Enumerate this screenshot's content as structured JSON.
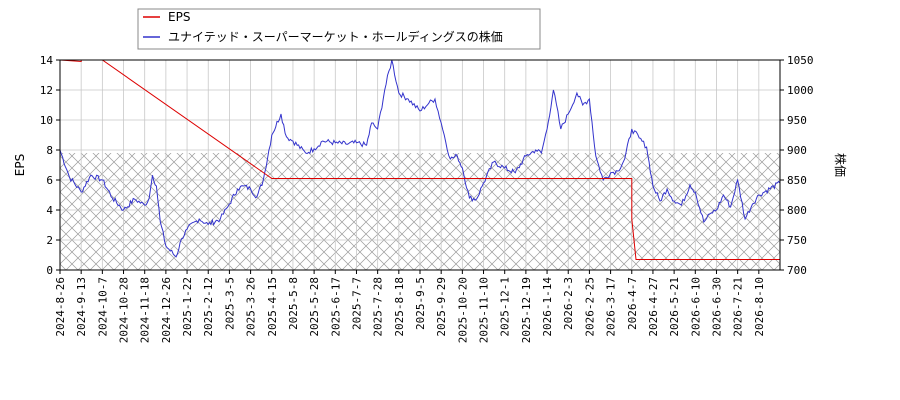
{
  "chart_data": {
    "type": "line",
    "title": "",
    "legend_position": "top-left",
    "grid": true,
    "x_tick_labels": [
      "2024-8-26",
      "2024-9-13",
      "2024-10-7",
      "2024-10-28",
      "2024-11-18",
      "2024-12-26",
      "2025-1-22",
      "2025-2-12",
      "2025-3-5",
      "2025-3-26",
      "2025-4-15",
      "2025-5-8",
      "2025-5-28",
      "2025-6-17",
      "2025-7-7",
      "2025-7-28",
      "2025-8-18",
      "2025-9-5",
      "2025-9-29",
      "2025-10-20",
      "2025-11-10",
      "2025-12-1",
      "2025-12-19",
      "2026-1-14",
      "2026-2-3",
      "2026-2-25",
      "2026-3-17",
      "2026-4-7",
      "2026-4-27",
      "2026-5-21",
      "2026-6-10",
      "2026-6-30",
      "2026-7-21",
      "2026-8-10"
    ],
    "y_left": {
      "label": "EPS",
      "range": [
        0,
        14
      ],
      "ticks": [
        0,
        2,
        4,
        6,
        8,
        10,
        12,
        14
      ]
    },
    "y_right": {
      "label": "株価",
      "range": [
        700,
        1050
      ],
      "ticks": [
        700,
        750,
        800,
        850,
        900,
        950,
        1000,
        1050
      ]
    },
    "hatched_band": {
      "axis": "left",
      "from": 0,
      "to": 7.8
    },
    "series": [
      {
        "name": "EPS",
        "axis": "left",
        "color": "#dd0000",
        "points": [
          [
            "2024-8-26",
            14.0
          ],
          [
            "2024-9-13",
            13.9
          ],
          [
            "2024-9-13",
            14.0
          ],
          [
            "2024-10-7",
            14.0
          ],
          [
            "2025-4-15",
            6.1
          ],
          [
            "2026-4-7",
            6.1
          ],
          [
            "2026-4-7",
            3.4
          ],
          [
            "2026-4-11",
            0.7
          ],
          [
            "2026-8-10",
            0.7
          ],
          [
            "2026-8-21",
            0.7
          ]
        ]
      },
      {
        "name": "ユナイテッド・スーパーマーケット・ホールディングスの株価",
        "axis": "right",
        "color": "#3333cc",
        "points": [
          [
            "2024-8-26",
            900
          ],
          [
            "2024-9-3",
            855
          ],
          [
            "2024-9-13",
            830
          ],
          [
            "2024-9-24",
            858
          ],
          [
            "2024-10-7",
            850
          ],
          [
            "2024-10-17",
            820
          ],
          [
            "2024-10-28",
            800
          ],
          [
            "2024-11-8",
            818
          ],
          [
            "2024-11-18",
            808
          ],
          [
            "2024-11-26",
            820
          ],
          [
            "2024-12-2",
            858
          ],
          [
            "2024-12-9",
            840
          ],
          [
            "2024-12-16",
            780
          ],
          [
            "2024-12-26",
            740
          ],
          [
            "2025-1-8",
            722
          ],
          [
            "2025-1-15",
            752
          ],
          [
            "2025-1-22",
            768
          ],
          [
            "2025-2-3",
            785
          ],
          [
            "2025-2-12",
            776
          ],
          [
            "2025-2-24",
            785
          ],
          [
            "2025-3-5",
            810
          ],
          [
            "2025-3-13",
            835
          ],
          [
            "2025-3-19",
            840
          ],
          [
            "2025-3-26",
            835
          ],
          [
            "2025-4-1",
            822
          ],
          [
            "2025-4-7",
            850
          ],
          [
            "2025-4-15",
            925
          ],
          [
            "2025-4-25",
            960
          ],
          [
            "2025-5-1",
            922
          ],
          [
            "2025-5-8",
            915
          ],
          [
            "2025-5-20",
            895
          ],
          [
            "2025-5-28",
            902
          ],
          [
            "2025-6-5",
            915
          ],
          [
            "2025-6-17",
            912
          ],
          [
            "2025-6-27",
            910
          ],
          [
            "2025-7-7",
            912
          ],
          [
            "2025-7-17",
            908
          ],
          [
            "2025-7-22",
            945
          ],
          [
            "2025-7-28",
            935
          ],
          [
            "2025-8-4",
            1000
          ],
          [
            "2025-8-11",
            1050
          ],
          [
            "2025-8-18",
            995
          ],
          [
            "2025-8-26",
            985
          ],
          [
            "2025-9-5",
            965
          ],
          [
            "2025-9-15",
            978
          ],
          [
            "2025-9-22",
            985
          ],
          [
            "2025-9-29",
            945
          ],
          [
            "2025-10-8",
            885
          ],
          [
            "2025-10-15",
            890
          ],
          [
            "2025-10-20",
            870
          ],
          [
            "2025-10-27",
            820
          ],
          [
            "2025-11-3",
            818
          ],
          [
            "2025-11-10",
            845
          ],
          [
            "2025-11-20",
            880
          ],
          [
            "2025-12-1",
            870
          ],
          [
            "2025-12-10",
            862
          ],
          [
            "2025-12-19",
            890
          ],
          [
            "2025-12-31",
            900
          ],
          [
            "2026-1-7",
            895
          ],
          [
            "2026-1-14",
            935
          ],
          [
            "2026-1-20",
            1000
          ],
          [
            "2026-1-27",
            935
          ],
          [
            "2026-2-3",
            960
          ],
          [
            "2026-2-12",
            995
          ],
          [
            "2026-2-18",
            975
          ],
          [
            "2026-2-25",
            985
          ],
          [
            "2026-3-3",
            890
          ],
          [
            "2026-3-10",
            850
          ],
          [
            "2026-3-17",
            862
          ],
          [
            "2026-3-24",
            865
          ],
          [
            "2026-3-31",
            885
          ],
          [
            "2026-4-7",
            935
          ],
          [
            "2026-4-14",
            920
          ],
          [
            "2026-4-21",
            905
          ],
          [
            "2026-4-27",
            840
          ],
          [
            "2026-5-5",
            815
          ],
          [
            "2026-5-13",
            835
          ],
          [
            "2026-5-21",
            815
          ],
          [
            "2026-5-28",
            808
          ],
          [
            "2026-6-5",
            842
          ],
          [
            "2026-6-10",
            830
          ],
          [
            "2026-6-18",
            780
          ],
          [
            "2026-6-25",
            795
          ],
          [
            "2026-6-30",
            800
          ],
          [
            "2026-7-7",
            825
          ],
          [
            "2026-7-14",
            805
          ],
          [
            "2026-7-21",
            850
          ],
          [
            "2026-7-28",
            785
          ],
          [
            "2026-8-4",
            810
          ],
          [
            "2026-8-10",
            825
          ],
          [
            "2026-8-21",
            845
          ]
        ]
      }
    ]
  }
}
